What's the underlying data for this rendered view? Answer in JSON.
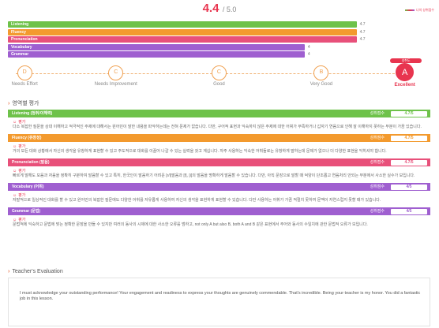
{
  "header": {
    "score": "4.4",
    "total": "/ 5.0",
    "legend_label": "나의 성취점수"
  },
  "bars": [
    {
      "label": "Listening",
      "value": "4.7",
      "fraction": 0.94,
      "color": "#6ec24a"
    },
    {
      "label": "Fluency",
      "value": "4.7",
      "fraction": 0.94,
      "color": "#f39a2e"
    },
    {
      "label": "Pronunciation",
      "value": "4.7",
      "fraction": 0.94,
      "color": "#e8507a"
    },
    {
      "label": "Vocabulary",
      "value": "4",
      "fraction": 0.8,
      "color": "#9f5fd0"
    },
    {
      "label": "Grammar",
      "value": "4",
      "fraction": 0.8,
      "color": "#9f5fd0"
    }
  ],
  "grades": [
    {
      "letter": "D",
      "label": "Needs Effort",
      "pos": 0.056
    },
    {
      "letter": "C",
      "label": "Needs Improvement",
      "pos": 0.264
    },
    {
      "letter": "C",
      "label": "Good",
      "pos": 0.499
    },
    {
      "letter": "B",
      "label": "Very Good",
      "pos": 0.732
    },
    {
      "letter": "A",
      "label": "Excellent",
      "pos": 0.922,
      "active": true,
      "tag": "성취도"
    }
  ],
  "section_title": "영역별 평가",
  "eval_label": "평가",
  "score_label": "성취점수",
  "blocks": [
    {
      "name": "Listening (청취/이해력)",
      "score": "4.7/5",
      "color": "#6ec24a",
      "text": "다소 복잡한 질문을 상대 이해하고 적극적인 주제에 대해서는 원어민이 말한 내용을 파악하는데는 전혀 문제가 없습니다. 다만, 구어적 표현과 익숙하지 않은 주제에 대한 어휘가 부족하거나 갑자기 연음으로 인해 잘 이해하지 못하는 부분이 가끔 있습니다."
    },
    {
      "name": "Fluency (유창성)",
      "score": "4.7/5",
      "color": "#f39a2e",
      "text": "거의 모든 대화 상황에서 자신의 생각을 유창하게 표현할 수 있고 주도적으로 대화를 이끌어 나갈 수 있는 실력을 갖고 계십니다. 자주 사용하는 익숙한 어휘들로는 유창하게 말하는데 문제가 없으나 더 다양한 표현을 익히셔야 합니다."
    },
    {
      "name": "Pronunciation (발음)",
      "score": "4.7/5",
      "color": "#e8507a",
      "text": "빠르게 말해도 모음과 자음을 정확히 구분하여 발음할 수 있고 특히, 한국인이 발음하기 어려운 [r/l]발음과 [f], [i]의 발음을 명확하게 발음할 수 있습니다. 다만, 아직 문장으로 말할 때 억양이 단조롭고 연음처리 안되는 부분에서 사소한 실수가 보입니다."
    },
    {
      "name": "Vocabulary (어휘)",
      "score": "4/5",
      "color": "#9f5fd0",
      "text": "자발적으로 일상적인 대화를 할 수 있고 원어민의 복잡한 질문에도 다양한 어휘를 자유롭게 사용하여 자신의 생각을 표현하게 표현할 수 있습니다. 다만 사용하는 어휘가 가끔 적절치 못하여 문맥이 자연스럽지 못할 때가 있습니다."
    },
    {
      "name": "Grammar (문법)",
      "score": "4/5",
      "color": "#9f5fd0",
      "text": "문법적에 익숙하고 문법에 맞는 정확한 문장을 만들 수 있지만 여러의 동사의 시제에 대한 사소한 오류를 범하고, not only A but also B, both A and B 같은 표현에서 주어와 동사의 수일치에 관한 문법적 오류가 보입니다."
    }
  ],
  "teacher": {
    "title": "Teacher's Evaluation",
    "text": "I must acknowledge your outstanding performance! Your engagement and readiness to express your thoughts are genuinely commendable. That's incredible. Being your teacher is my honor. You did a fantastic job in this lesson."
  }
}
